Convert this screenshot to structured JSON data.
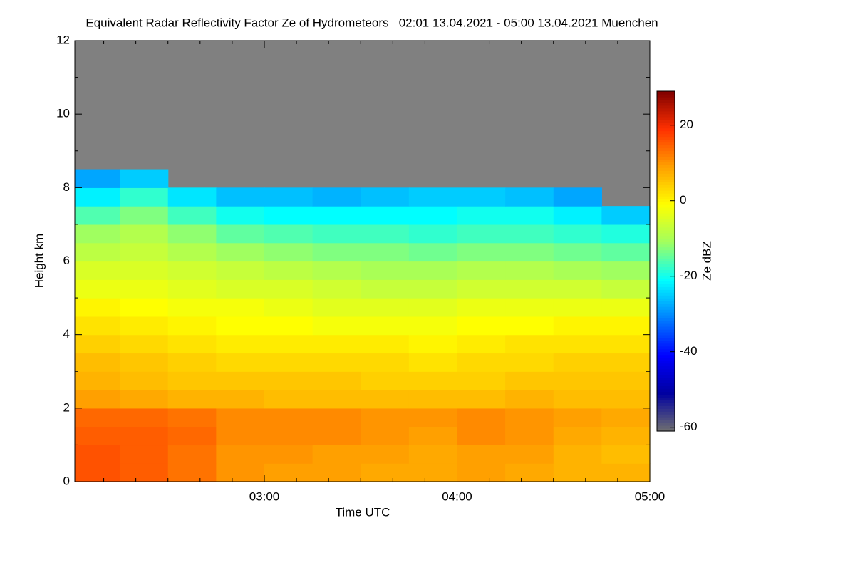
{
  "chart_data": {
    "type": "heatmap",
    "title": "Equivalent Radar Reflectivity Factor Ze of Hydrometeors   02:01 13.04.2021 - 05:00 13.04.2021 Muenchen",
    "xlabel": "Time UTC",
    "ylabel": "Height km",
    "colorbar_label": "Ze dBZ",
    "xlim": [
      2.0167,
      5.0
    ],
    "ylim": [
      0,
      12
    ],
    "xticks": [
      {
        "value": 3,
        "label": "03:00"
      },
      {
        "value": 4,
        "label": "04:00"
      },
      {
        "value": 5,
        "label": "05:00"
      }
    ],
    "xminorticks": [
      2.1667,
      2.3333,
      2.5,
      2.6667,
      2.8333,
      3.1667,
      3.3333,
      3.5,
      3.6667,
      3.8333,
      4.1667,
      4.3333,
      4.5,
      4.6667,
      4.8333
    ],
    "yticks": [
      0,
      2,
      4,
      6,
      8,
      10,
      12
    ],
    "yminorticks": [
      1,
      3,
      5,
      7,
      9,
      11
    ],
    "clim": [
      -61,
      29
    ],
    "cticks": [
      -60,
      -40,
      -20,
      0,
      20
    ],
    "colormap": [
      "#707070",
      "#0000a0",
      "#0000ff",
      "#0080ff",
      "#00ffff",
      "#a0ff60",
      "#ffff00",
      "#ffa000",
      "#ff3000",
      "#800000"
    ],
    "no_data_color": "#808080",
    "xbins": [
      2.0167,
      2.25,
      2.5,
      2.75,
      3,
      3.25,
      3.5,
      3.75,
      4,
      4.25,
      4.5,
      4.75,
      5
    ],
    "ybins": [
      0,
      0.5,
      1,
      1.5,
      2,
      2.5,
      3,
      3.5,
      4,
      4.5,
      5,
      5.5,
      6,
      6.5,
      7,
      7.5,
      8,
      8.5
    ],
    "z": [
      [
        16,
        15,
        13,
        10,
        9,
        9,
        8,
        8,
        9,
        8,
        7,
        7
      ],
      [
        16,
        15,
        13,
        10,
        10,
        9,
        9,
        8,
        9,
        9,
        7,
        6
      ],
      [
        15,
        15,
        14,
        11,
        11,
        11,
        10,
        9,
        11,
        10,
        8,
        7
      ],
      [
        14,
        14,
        13,
        11,
        11,
        11,
        10,
        10,
        11,
        10,
        9,
        8
      ],
      [
        9,
        8,
        7,
        7,
        6,
        6,
        6,
        6,
        6,
        7,
        6,
        6
      ],
      [
        7,
        6,
        5,
        5,
        5,
        5,
        4,
        4,
        4,
        5,
        5,
        5
      ],
      [
        6,
        5,
        4,
        3,
        3,
        3,
        3,
        2,
        3,
        3,
        4,
        4
      ],
      [
        4,
        3,
        2,
        1,
        1,
        1,
        1,
        0,
        1,
        2,
        2,
        2
      ],
      [
        2,
        1,
        0,
        -1,
        -1,
        -2,
        -2,
        -2,
        -1,
        -1,
        0,
        0
      ],
      [
        0,
        -1,
        -2,
        -2,
        -3,
        -4,
        -4,
        -4,
        -3,
        -3,
        -3,
        -3
      ],
      [
        -3,
        -3,
        -4,
        -5,
        -5,
        -6,
        -7,
        -7,
        -6,
        -6,
        -6,
        -7
      ],
      [
        -5,
        -5,
        -6,
        -7,
        -8,
        -9,
        -10,
        -10,
        -9,
        -9,
        -10,
        -11
      ],
      [
        -8,
        -7,
        -9,
        -11,
        -12,
        -13,
        -13,
        -14,
        -13,
        -13,
        -14,
        -15
      ],
      [
        -11,
        -9,
        -12,
        -15,
        -16,
        -17,
        -17,
        -18,
        -17,
        -17,
        -18,
        -19
      ],
      [
        -16,
        -13,
        -17,
        -20,
        -21,
        -21,
        -21,
        -21,
        -20,
        -20,
        -22,
        -25
      ],
      [
        -22,
        -18,
        -23,
        -26,
        -26,
        -27,
        -26,
        -25,
        -25,
        -26,
        -28,
        null
      ],
      [
        -28,
        -25,
        null,
        null,
        null,
        null,
        null,
        null,
        null,
        null,
        null,
        null
      ]
    ]
  }
}
